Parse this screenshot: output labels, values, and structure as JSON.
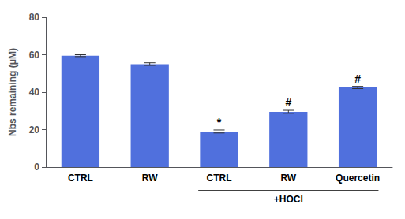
{
  "chart_data": {
    "type": "bar",
    "categories": [
      "CTRL",
      "RW",
      "CTRL",
      "RW",
      "Quercetin"
    ],
    "values": [
      59.5,
      55.0,
      19.0,
      29.5,
      42.5
    ],
    "errors": [
      0.5,
      0.7,
      0.8,
      0.8,
      0.6
    ],
    "ylabel": "Nbs remaining (μM)",
    "ylim": [
      0,
      80
    ],
    "yticks": [
      0,
      20,
      40,
      60,
      80
    ],
    "annotations": [
      null,
      null,
      "*",
      "#",
      "#"
    ],
    "groups": [
      {
        "label": "+HOCl",
        "first": 2,
        "last": 4
      }
    ],
    "grid": false
  }
}
